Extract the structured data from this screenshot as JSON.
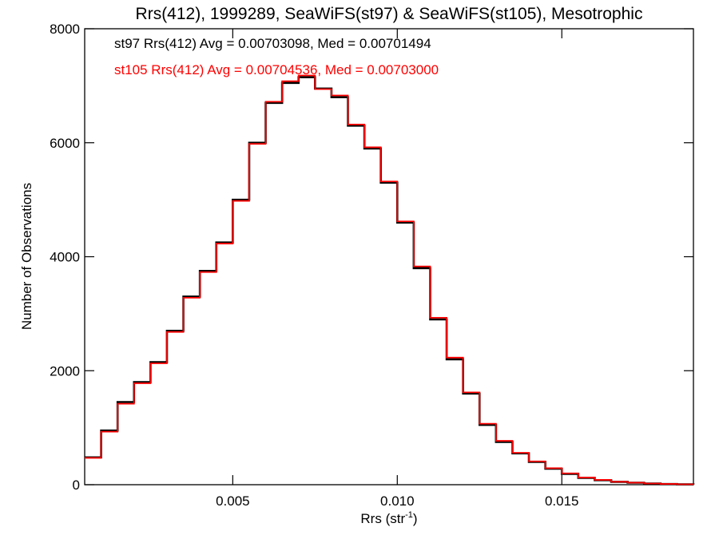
{
  "chart_data": {
    "type": "line",
    "title": "Rrs(412), 1999289, SeaWiFS(st97) & SeaWiFS(st105), Mesotrophic",
    "xlabel_main": "Rrs (str",
    "xlabel_sup": "-1",
    "xlabel_close": ")",
    "ylabel": "Number of Observations",
    "xlim": [
      0.0005,
      0.019
    ],
    "ylim": [
      0,
      8000
    ],
    "x_ticks": [
      0.005,
      0.01,
      0.015
    ],
    "x_tick_labels": [
      "0.005",
      "0.010",
      "0.015"
    ],
    "y_ticks": [
      0,
      2000,
      4000,
      6000,
      8000
    ],
    "y_tick_labels": [
      "0",
      "2000",
      "4000",
      "6000",
      "8000"
    ],
    "grid": false,
    "legend_position": "top-left",
    "annotations": [
      {
        "text": "st97 Rrs(412) Avg = 0.00703098, Med = 0.00701494",
        "color": "#000000"
      },
      {
        "text": "st105 Rrs(412) Avg = 0.00704536, Med = 0.00703000",
        "color": "#ff0000"
      }
    ],
    "x": [
      0.0005,
      0.001,
      0.0015,
      0.002,
      0.0025,
      0.003,
      0.0035,
      0.004,
      0.0045,
      0.005,
      0.0055,
      0.006,
      0.0065,
      0.007,
      0.0075,
      0.008,
      0.0085,
      0.009,
      0.0095,
      0.01,
      0.0105,
      0.011,
      0.0115,
      0.012,
      0.0125,
      0.013,
      0.0135,
      0.014,
      0.0145,
      0.015,
      0.0155,
      0.016,
      0.0165,
      0.017,
      0.0175,
      0.018,
      0.0185,
      0.019
    ],
    "series": [
      {
        "color": "#000000",
        "values": [
          480,
          950,
          1450,
          1800,
          2150,
          2700,
          3300,
          3750,
          4250,
          5000,
          6000,
          6700,
          7050,
          7150,
          6950,
          6800,
          6300,
          5900,
          5300,
          4600,
          3800,
          2900,
          2200,
          1600,
          1050,
          750,
          550,
          400,
          280,
          190,
          120,
          80,
          50,
          35,
          20,
          12,
          6,
          3
        ]
      },
      {
        "color": "#ff0000",
        "values": [
          470,
          930,
          1420,
          1780,
          2130,
          2680,
          3280,
          3730,
          4230,
          4980,
          5980,
          6720,
          7080,
          7180,
          6940,
          6830,
          6320,
          5920,
          5320,
          4620,
          3830,
          2930,
          2230,
          1620,
          1070,
          770,
          560,
          410,
          290,
          200,
          125,
          85,
          52,
          36,
          21,
          13,
          7,
          3
        ]
      }
    ]
  }
}
